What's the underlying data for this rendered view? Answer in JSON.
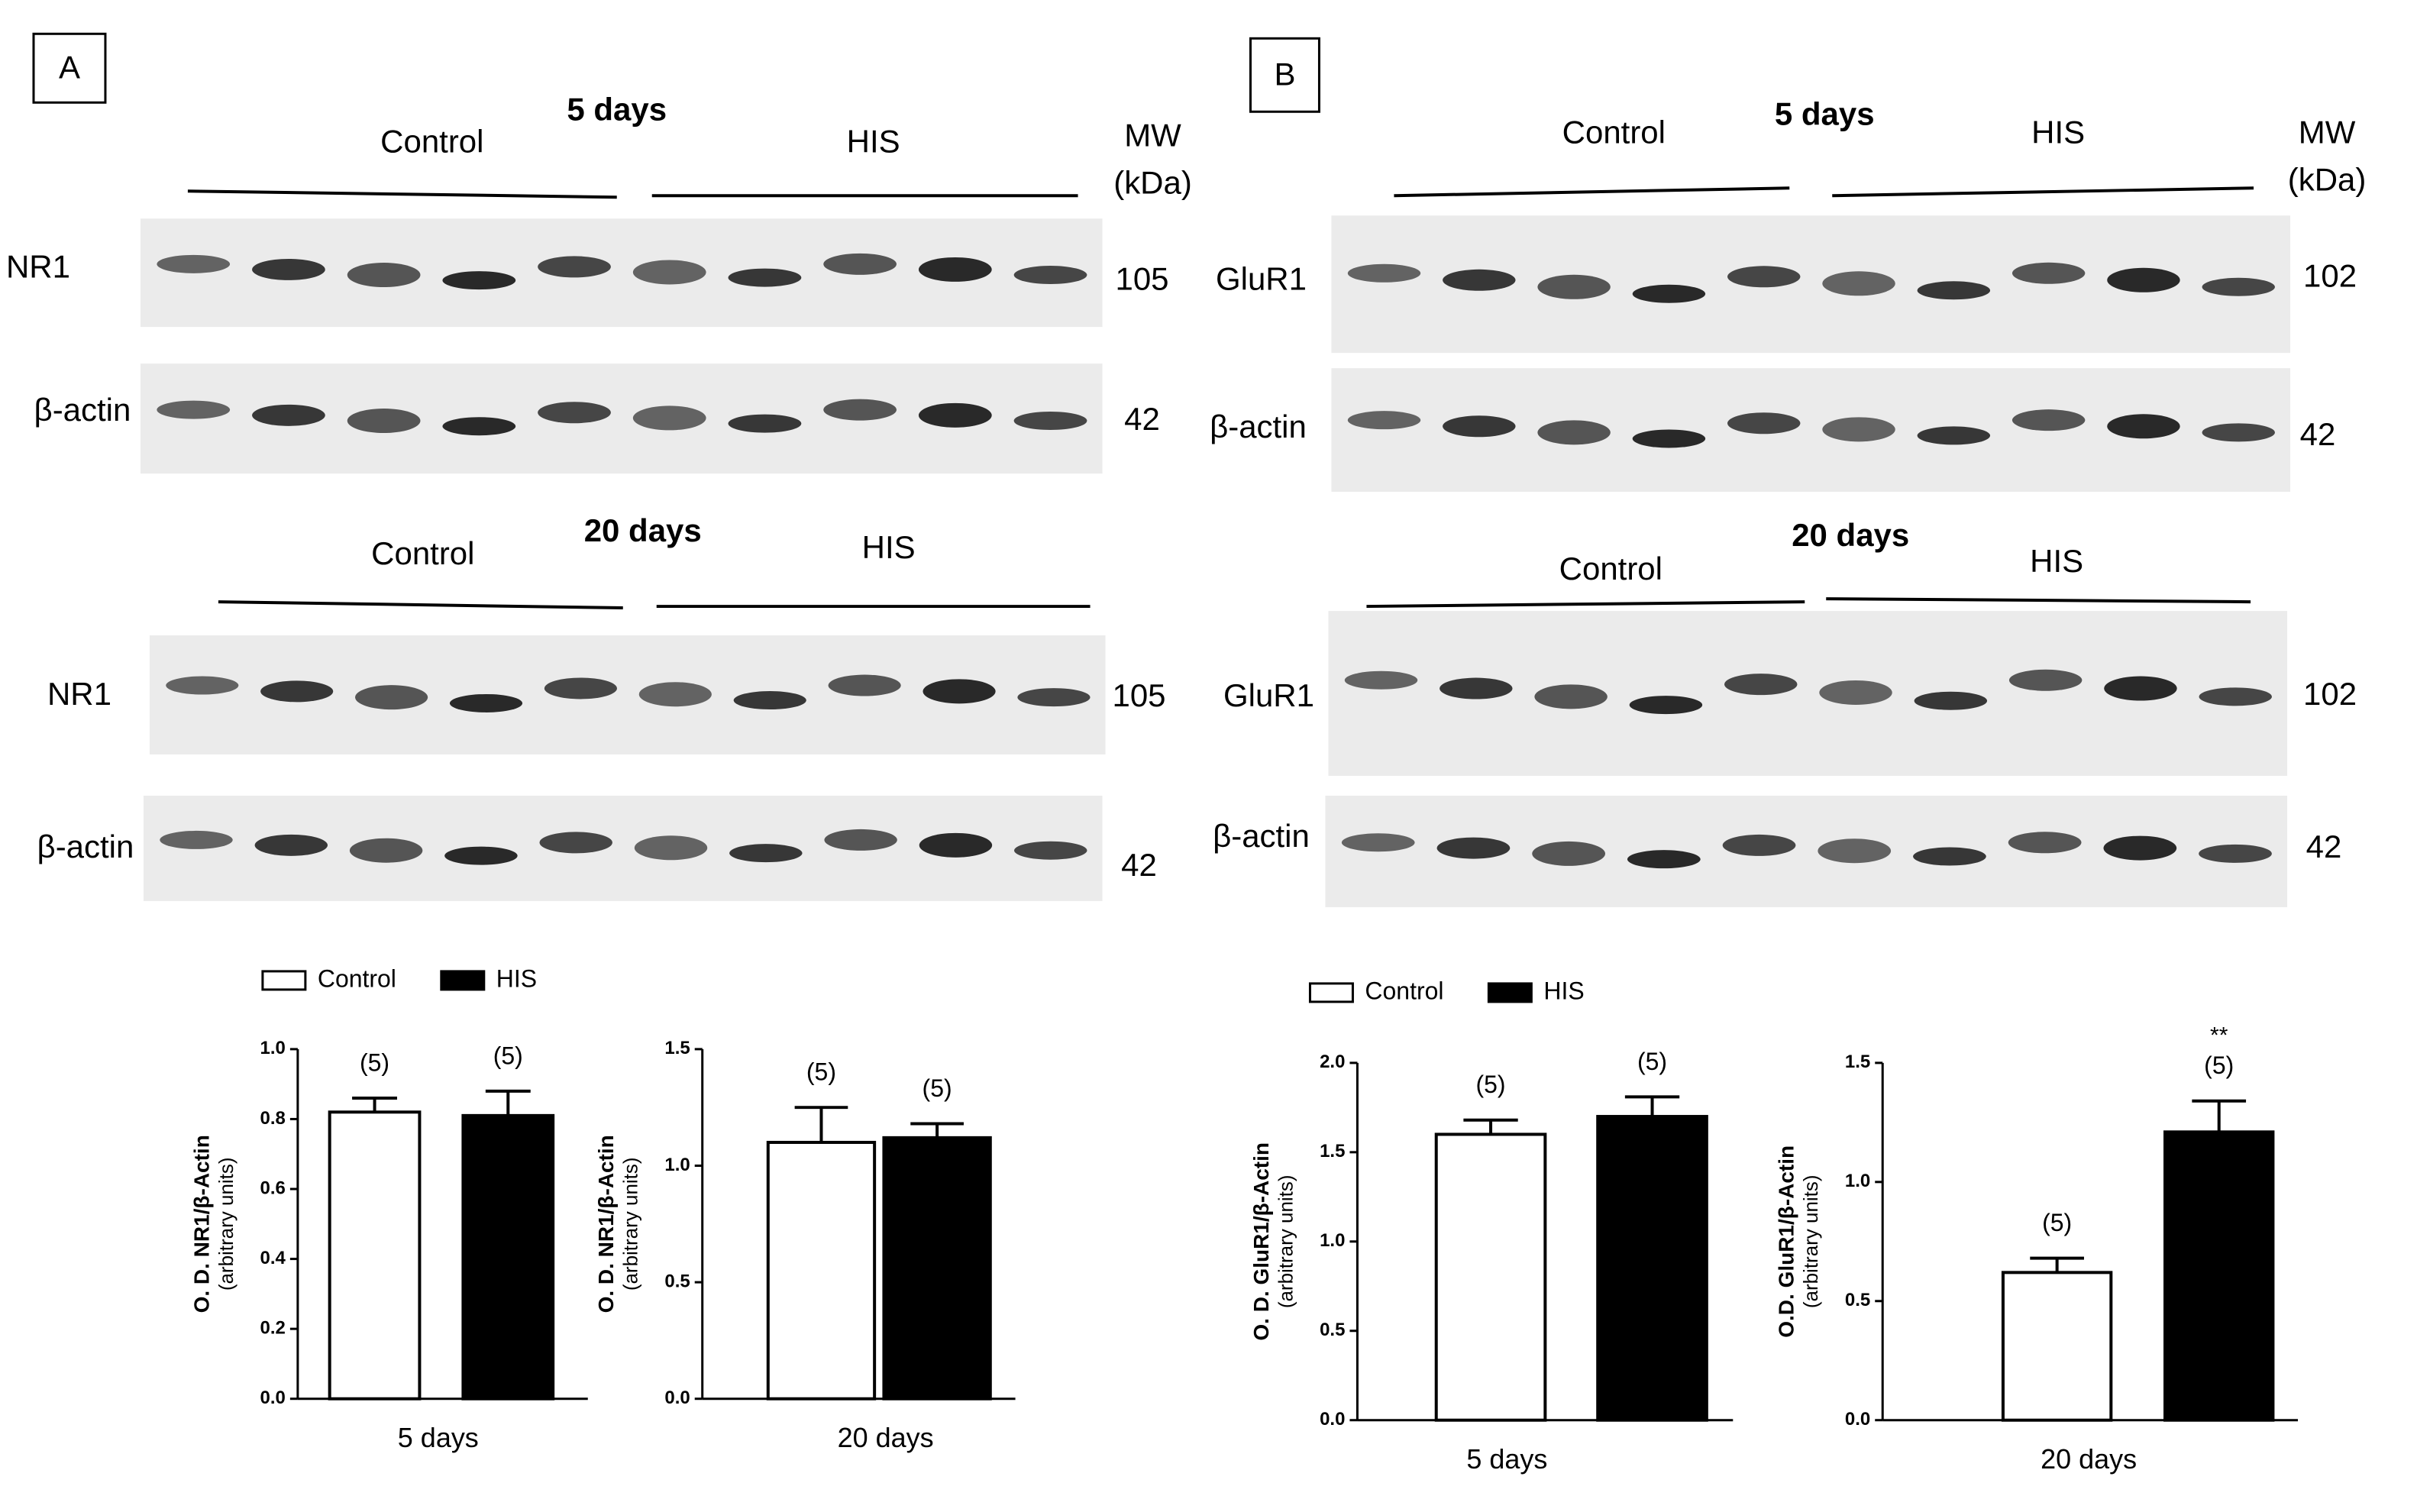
{
  "panels": [
    {
      "label": "A",
      "mw_label": [
        "MW",
        "(kDa)"
      ],
      "blocks": [
        {
          "title": "5 days",
          "groups": [
            "Control",
            "HIS"
          ],
          "rows": [
            {
              "protein": "NR1",
              "mw": "105"
            },
            {
              "protein": "β-actin",
              "mw": "42"
            }
          ]
        },
        {
          "title": "20 days",
          "groups": [
            "Control",
            "HIS"
          ],
          "rows": [
            {
              "protein": "NR1",
              "mw": "105"
            },
            {
              "protein": "β-actin",
              "mw": "42"
            }
          ]
        }
      ]
    },
    {
      "label": "B",
      "mw_label": [
        "MW",
        "(kDa)"
      ],
      "blocks": [
        {
          "title": "5 days",
          "groups": [
            "Control",
            "HIS"
          ],
          "rows": [
            {
              "protein": "GluR1",
              "mw": "102"
            },
            {
              "protein": "β-actin",
              "mw": "42"
            }
          ]
        },
        {
          "title": "20 days",
          "groups": [
            "Control",
            "HIS"
          ],
          "rows": [
            {
              "protein": "GluR1",
              "mw": "102"
            },
            {
              "protein": "β-actin",
              "mw": "42"
            }
          ]
        }
      ]
    }
  ],
  "chart_data": [
    {
      "type": "bar",
      "ylabel": "O. D. NR1/β-Actin",
      "ylabel_note": "(arbitrary units)",
      "categories": [
        "5 days"
      ],
      "series": [
        {
          "name": "Control",
          "color": "#ffffff",
          "values": [
            0.82
          ],
          "errors": [
            0.04
          ],
          "n_labels": [
            "(5)"
          ]
        },
        {
          "name": "HIS",
          "color": "#000000",
          "values": [
            0.81
          ],
          "errors": [
            0.07
          ],
          "n_labels": [
            "(5)"
          ]
        }
      ],
      "ylim": [
        0,
        1
      ],
      "yticks": [
        {
          "value": 0,
          "label": "0.0"
        },
        0.2,
        0.4,
        0.6,
        0.8,
        {
          "value": 1,
          "label": "1.0"
        }
      ],
      "legend": "top"
    },
    {
      "type": "bar",
      "ylabel": "O. D. NR1/β-Actin",
      "ylabel_note": "(arbitrary units)",
      "categories": [
        "20 days"
      ],
      "series": [
        {
          "name": "Control",
          "color": "#ffffff",
          "values": [
            1.1
          ],
          "errors": [
            0.15
          ],
          "n_labels": [
            "(5)"
          ]
        },
        {
          "name": "HIS",
          "color": "#000000",
          "values": [
            1.12
          ],
          "errors": [
            0.06
          ],
          "n_labels": [
            "(5)"
          ]
        }
      ],
      "ylim": [
        0,
        1.5
      ],
      "yticks": [
        {
          "value": 0,
          "label": "0.0"
        },
        0.5,
        {
          "value": 1,
          "label": "1.0"
        },
        1.5
      ]
    },
    {
      "type": "bar",
      "ylabel": "O. D. GluR1/β-Actin",
      "ylabel_note": "(arbitrary units)",
      "categories": [
        "5 days"
      ],
      "series": [
        {
          "name": "Control",
          "color": "#ffffff",
          "values": [
            1.6
          ],
          "errors": [
            0.08
          ],
          "n_labels": [
            "(5)"
          ]
        },
        {
          "name": "HIS",
          "color": "#000000",
          "values": [
            1.7
          ],
          "errors": [
            0.11
          ],
          "n_labels": [
            "(5)"
          ]
        }
      ],
      "ylim": [
        0,
        2
      ],
      "yticks": [
        {
          "value": 0,
          "label": "0.0"
        },
        0.5,
        {
          "value": 1,
          "label": "1.0"
        },
        1.5,
        {
          "value": 2,
          "label": "2.0"
        }
      ],
      "legend": "top"
    },
    {
      "type": "bar",
      "ylabel": "O.D. GluR1/β-Actin",
      "ylabel_note": "(arbitrary units)",
      "categories": [
        "20 days"
      ],
      "series": [
        {
          "name": "Control",
          "color": "#ffffff",
          "values": [
            0.62
          ],
          "errors": [
            0.06
          ],
          "n_labels": [
            "(5)"
          ]
        },
        {
          "name": "HIS",
          "color": "#000000",
          "values": [
            1.21
          ],
          "errors": [
            0.13
          ],
          "n_labels": [
            "(5)"
          ],
          "sig_labels": [
            "**"
          ]
        }
      ],
      "ylim": [
        0,
        1.5
      ],
      "yticks": [
        {
          "value": 0,
          "label": "0.0"
        },
        0.5,
        {
          "value": 1,
          "label": "1.0"
        },
        1.5
      ]
    }
  ]
}
